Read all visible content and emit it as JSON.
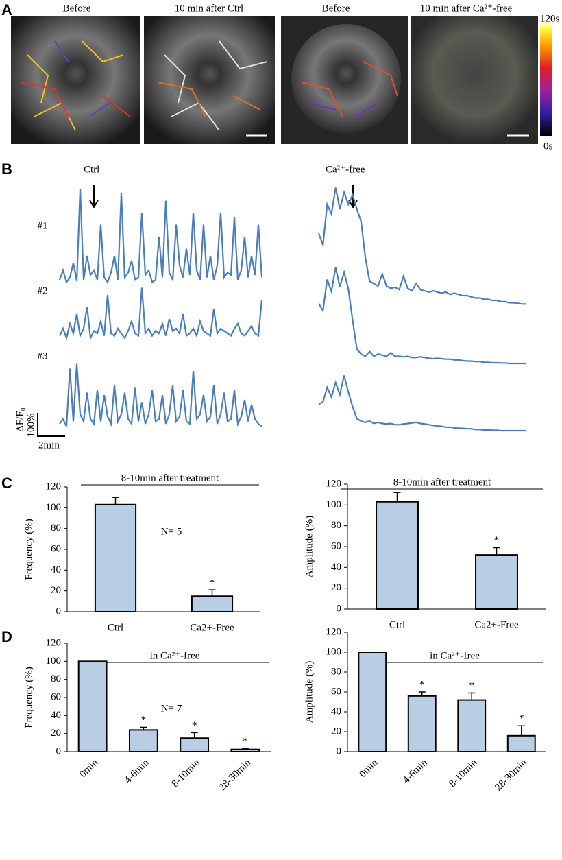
{
  "figure": {
    "panel_labels": [
      "A",
      "B",
      "C",
      "D"
    ],
    "images": {
      "captions": [
        "Before",
        "10 min after Ctrl",
        "Before",
        "10 min after Ca²⁺-free"
      ],
      "colorbar": {
        "top": "120s",
        "bottom": "0s"
      }
    }
  },
  "chart_data": [
    {
      "type": "trace",
      "color": "#4a7ebb",
      "scale_bar": {
        "y_quantity": "ΔF/F₀",
        "y_label": "100%",
        "x_label": "2min"
      },
      "panels": [
        {
          "title": "Ctrl",
          "series": [
            {
              "name": "#1",
              "values": [
                20,
                60,
                10,
                30,
                90,
                15,
                400,
                20,
                120,
                40,
                60,
                20,
                250,
                30,
                10,
                50,
                120,
                20,
                380,
                30,
                50,
                100,
                20,
                30,
                300,
                40,
                60,
                10,
                20,
                200,
                30,
                350,
                50,
                20,
                250,
                80,
                30,
                150,
                40,
                300,
                60,
                20,
                250,
                30,
                120,
                20,
                80,
                300,
                30,
                50,
                40,
                280,
                20,
                60,
                200,
                30,
                120,
                40,
                250,
                30
              ]
            },
            {
              "name": "#2",
              "values": [
                30,
                60,
                20,
                80,
                40,
                120,
                30,
                60,
                150,
                20,
                50,
                40,
                90,
                30,
                200,
                40,
                30,
                60,
                40,
                20,
                50,
                90,
                40,
                30,
                230,
                40,
                60,
                30,
                50,
                40,
                80,
                30,
                100,
                50,
                60,
                40,
                120,
                30,
                40,
                60,
                30,
                90,
                50,
                40,
                30,
                140,
                40,
                60,
                50,
                40,
                30,
                60,
                80,
                40,
                30,
                50,
                70,
                40,
                30,
                180
              ]
            },
            {
              "name": "#3",
              "values": [
                20,
                40,
                10,
                250,
                30,
                270,
                60,
                30,
                150,
                40,
                20,
                160,
                30,
                140,
                50,
                20,
                180,
                30,
                60,
                150,
                40,
                20,
                170,
                30,
                110,
                20,
                60,
                160,
                30,
                40,
                140,
                20,
                60,
                180,
                30,
                50,
                160,
                30,
                20,
                240,
                40,
                60,
                140,
                30,
                50,
                180,
                20,
                60,
                150,
                30,
                40,
                160,
                20,
                50,
                120,
                30,
                100,
                40,
                20,
                10
              ]
            }
          ]
        },
        {
          "title": "Ca²⁺-free",
          "series": [
            {
              "values": [
                300,
                250,
                420,
                380,
                490,
                400,
                470,
                420,
                460,
                400,
                350,
                200,
                100,
                90,
                80,
                130,
                80,
                70,
                75,
                65,
                120,
                70,
                60,
                90,
                65,
                60,
                55,
                60,
                55,
                50,
                55,
                45,
                50,
                45,
                40,
                40,
                35,
                30,
                30,
                25,
                25,
                20,
                20,
                15,
                15,
                10,
                10,
                8,
                5,
                5
              ]
            },
            {
              "values": [
                250,
                220,
                350,
                300,
                400,
                320,
                380,
                310,
                180,
                60,
                40,
                30,
                50,
                30,
                40,
                35,
                30,
                45,
                30,
                30,
                28,
                30,
                25,
                25,
                28,
                25,
                22,
                20,
                22,
                20,
                18,
                18,
                15,
                15,
                12,
                10,
                10,
                8,
                8,
                5,
                5,
                3,
                3,
                2,
                2,
                0,
                0,
                0,
                0,
                0
              ]
            },
            {
              "values": [
                110,
                120,
                180,
                140,
                200,
                150,
                230,
                160,
                100,
                50,
                40,
                35,
                40,
                30,
                35,
                30,
                28,
                30,
                25,
                25,
                28,
                30,
                32,
                35,
                30,
                28,
                25,
                22,
                20,
                18,
                15,
                15,
                12,
                10,
                10,
                8,
                8,
                5,
                5,
                3,
                3,
                2,
                2,
                0,
                0,
                0,
                0,
                0,
                0,
                0
              ]
            }
          ]
        }
      ]
    },
    {
      "type": "bar",
      "title": "8-10min after treatment",
      "y_label": "Frequency (%)",
      "annotation": "N= 5",
      "color": "#b9cde5",
      "categories": [
        "Ctrl",
        "Ca2+-Free"
      ],
      "values": [
        103,
        15
      ],
      "errors": [
        7,
        6
      ],
      "significance": [
        null,
        "*"
      ],
      "ylim": [
        0,
        120
      ],
      "yticks": [
        0,
        20,
        40,
        60,
        80,
        100,
        120
      ]
    },
    {
      "type": "bar",
      "title": "8-10min after treatment",
      "y_label": "Amplitude (%)",
      "color": "#b9cde5",
      "categories": [
        "Ctrl",
        "Ca2+-Free"
      ],
      "values": [
        103,
        52
      ],
      "errors": [
        9,
        7
      ],
      "significance": [
        null,
        "*"
      ],
      "ylim": [
        0,
        120
      ],
      "yticks": [
        0,
        20,
        40,
        60,
        80,
        100,
        120
      ]
    },
    {
      "type": "bar",
      "title": "in Ca²⁺-free",
      "y_label": "Frequency (%)",
      "annotation": "N= 7",
      "color": "#b9cde5",
      "rotate_labels": true,
      "categories": [
        "0min",
        "4-6min",
        "8-10min",
        "28-30min"
      ],
      "values": [
        100,
        24,
        15,
        2.5
      ],
      "errors": [
        0,
        3,
        6,
        1
      ],
      "significance": [
        null,
        "*",
        "*",
        "*"
      ],
      "ylim": [
        0,
        120
      ],
      "yticks": [
        0,
        20,
        40,
        60,
        80,
        100,
        120
      ]
    },
    {
      "type": "bar",
      "title": "in Ca²⁺-free",
      "y_label": "Amplitude (%)",
      "color": "#b9cde5",
      "rotate_labels": true,
      "categories": [
        "0min",
        "4-6min",
        "8-10min",
        "28-30min"
      ],
      "values": [
        100,
        56,
        52,
        16
      ],
      "errors": [
        0,
        4,
        7,
        10
      ],
      "significance": [
        null,
        "*",
        "*",
        "*"
      ],
      "ylim": [
        0,
        120
      ],
      "yticks": [
        0,
        20,
        40,
        60,
        80,
        100,
        120
      ]
    }
  ]
}
